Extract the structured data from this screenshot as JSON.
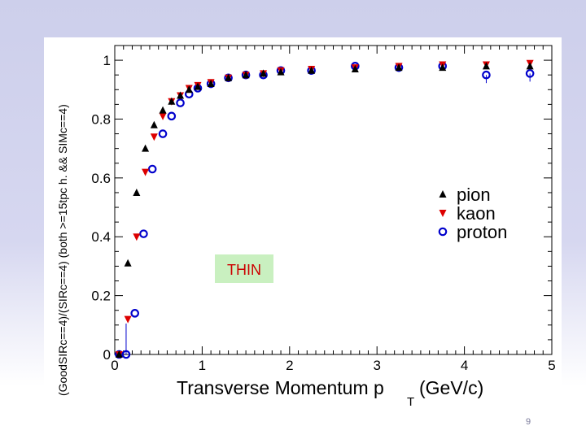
{
  "slide": {
    "page_number": "9"
  },
  "chart_data": {
    "type": "scatter",
    "title": "",
    "xlabel": "Transverse Momentum p",
    "xlabel_subscript": "T",
    "xlabel_unit": "(GeV/c)",
    "ylabel": "(GoodSIRc==4)/(SIRc==4) (both >=15tpc h. && SIMc==4)",
    "xlim": [
      0,
      5
    ],
    "ylim": [
      0,
      1.05
    ],
    "x_ticks": [
      "0",
      "1",
      "2",
      "3",
      "4",
      "5"
    ],
    "y_ticks": [
      "0",
      "0.2",
      "0.4",
      "0.6",
      "0.8",
      "1"
    ],
    "annotation": "THIN",
    "legend_position": "right-middle",
    "series": [
      {
        "name": "pion",
        "marker": "triangle-up",
        "color": "#000000",
        "x": [
          0.05,
          0.15,
          0.25,
          0.35,
          0.45,
          0.55,
          0.65,
          0.75,
          0.85,
          0.95,
          1.1,
          1.3,
          1.5,
          1.7,
          1.9,
          2.25,
          2.75,
          3.25,
          3.75,
          4.25,
          4.75
        ],
        "y": [
          0.0,
          0.31,
          0.55,
          0.7,
          0.78,
          0.83,
          0.86,
          0.88,
          0.9,
          0.91,
          0.92,
          0.94,
          0.95,
          0.955,
          0.96,
          0.965,
          0.97,
          0.975,
          0.975,
          0.98,
          0.98
        ]
      },
      {
        "name": "kaon",
        "marker": "triangle-down",
        "color": "#dd0000",
        "x": [
          0.05,
          0.15,
          0.25,
          0.35,
          0.45,
          0.55,
          0.65,
          0.75,
          0.85,
          0.95,
          1.1,
          1.3,
          1.5,
          1.7,
          1.9,
          2.25,
          2.75,
          3.25,
          3.75,
          4.25,
          4.75
        ],
        "y": [
          0.0,
          0.12,
          0.4,
          0.62,
          0.74,
          0.81,
          0.86,
          0.88,
          0.905,
          0.915,
          0.925,
          0.94,
          0.95,
          0.955,
          0.965,
          0.97,
          0.975,
          0.98,
          0.985,
          0.985,
          0.99
        ]
      },
      {
        "name": "proton",
        "marker": "open-circle",
        "color": "#0000cc",
        "x": [
          0.05,
          0.13,
          0.23,
          0.33,
          0.43,
          0.55,
          0.65,
          0.75,
          0.85,
          0.95,
          1.1,
          1.3,
          1.5,
          1.7,
          1.9,
          2.25,
          2.75,
          3.25,
          3.75,
          4.25,
          4.75
        ],
        "y": [
          0.0,
          0.0,
          0.14,
          0.41,
          0.63,
          0.75,
          0.81,
          0.855,
          0.885,
          0.905,
          0.92,
          0.94,
          0.95,
          0.95,
          0.965,
          0.965,
          0.98,
          0.975,
          0.98,
          0.95,
          0.955
        ]
      }
    ]
  }
}
